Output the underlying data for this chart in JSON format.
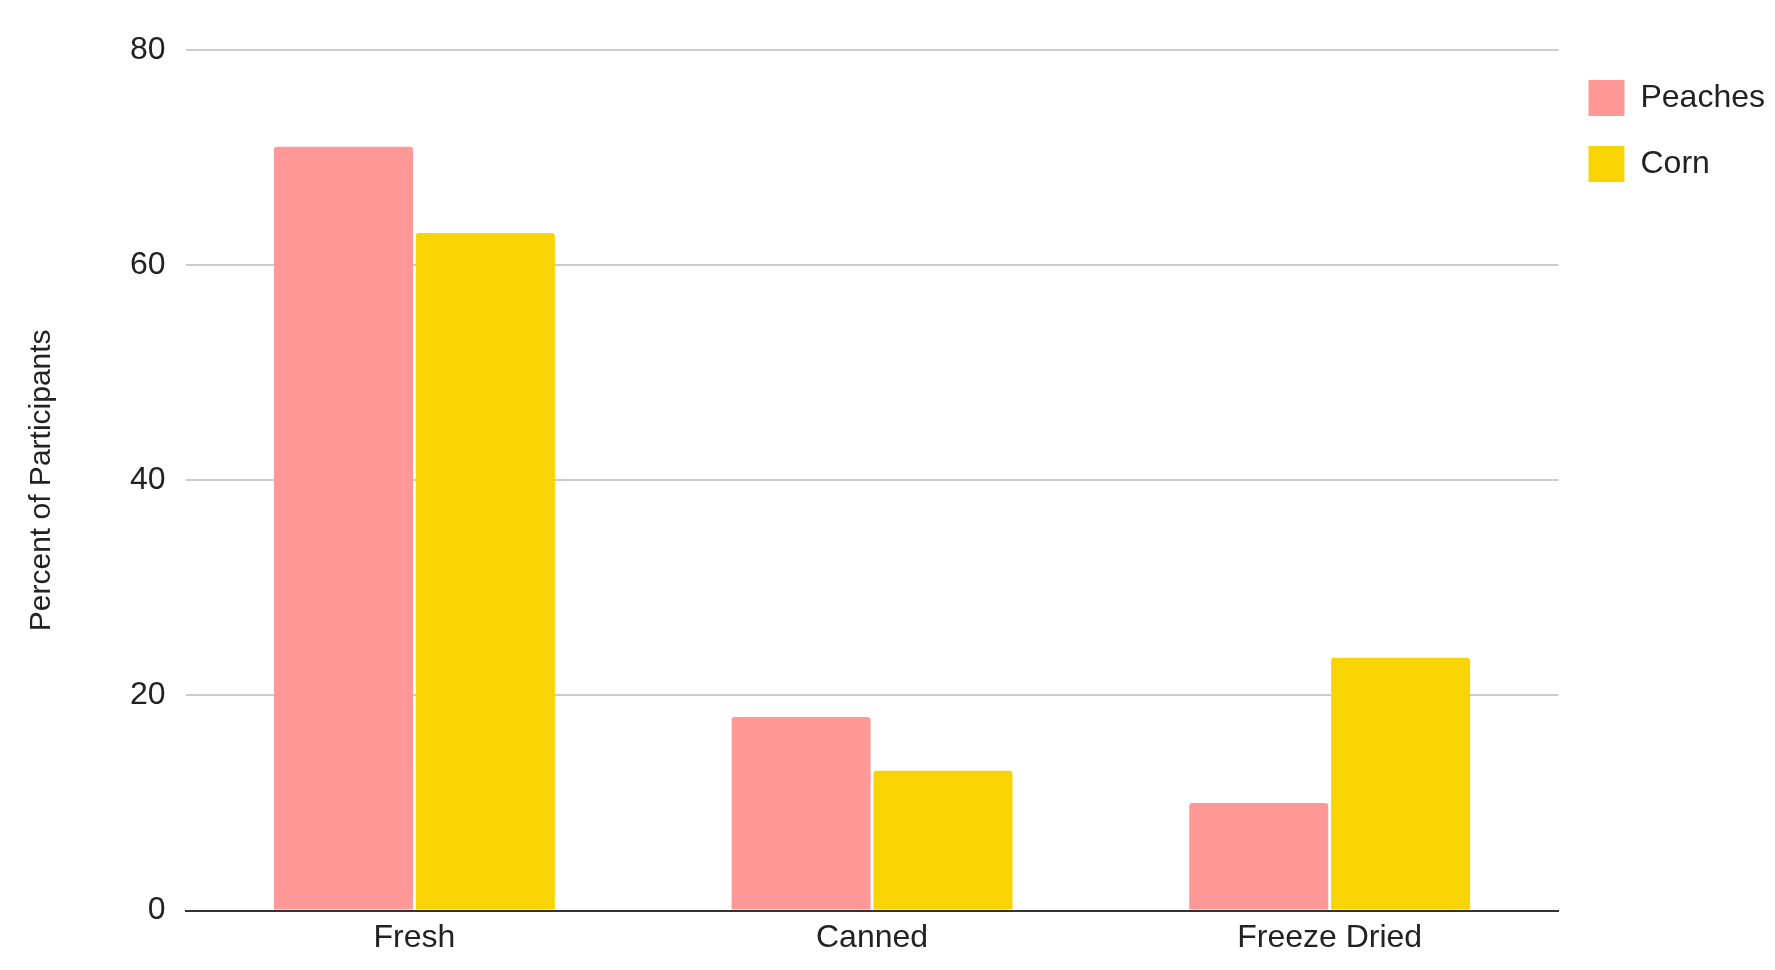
{
  "chart_data": {
    "type": "bar",
    "ylabel": "Percent of Participants",
    "categories": [
      "Fresh",
      "Canned",
      "Freeze Dried"
    ],
    "series": [
      {
        "name": "Peaches",
        "color": "#ff9896",
        "values": [
          71,
          18,
          10
        ]
      },
      {
        "name": "Corn",
        "color": "#f8d404",
        "values": [
          63,
          13,
          23.5
        ]
      }
    ],
    "ylim": [
      0,
      80
    ],
    "yticks": [
      0,
      20,
      40,
      60,
      80
    ],
    "grid": "y",
    "legend": "top right"
  }
}
